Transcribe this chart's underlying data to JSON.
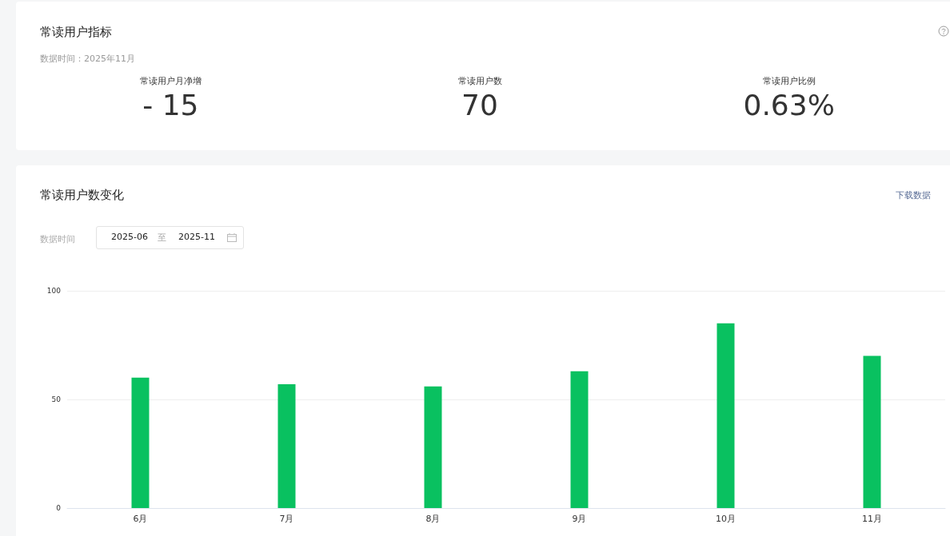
{
  "chart_data": [
    {
      "type": "other",
      "title": "常读用户指标",
      "subtitle": "数据时间：2025年11月",
      "categories": [
        "常读用户月净增",
        "常读用户数",
        "常读用户比例"
      ],
      "value_labels": [
        "- 15",
        "70",
        "0.63%"
      ]
    },
    {
      "type": "bar",
      "title": "常读用户数变化",
      "annotations": [
        "下载数据",
        "数据时间",
        "2025-06",
        "至",
        "2025-11"
      ],
      "categories": [
        "6月",
        "7月",
        "8月",
        "9月",
        "10月",
        "11月"
      ],
      "values": [
        60,
        57,
        56,
        63,
        85,
        70
      ],
      "color": "#09c160",
      "ylim": [
        0,
        100
      ],
      "yticks": [
        0,
        50,
        100
      ],
      "grid": "y"
    }
  ]
}
